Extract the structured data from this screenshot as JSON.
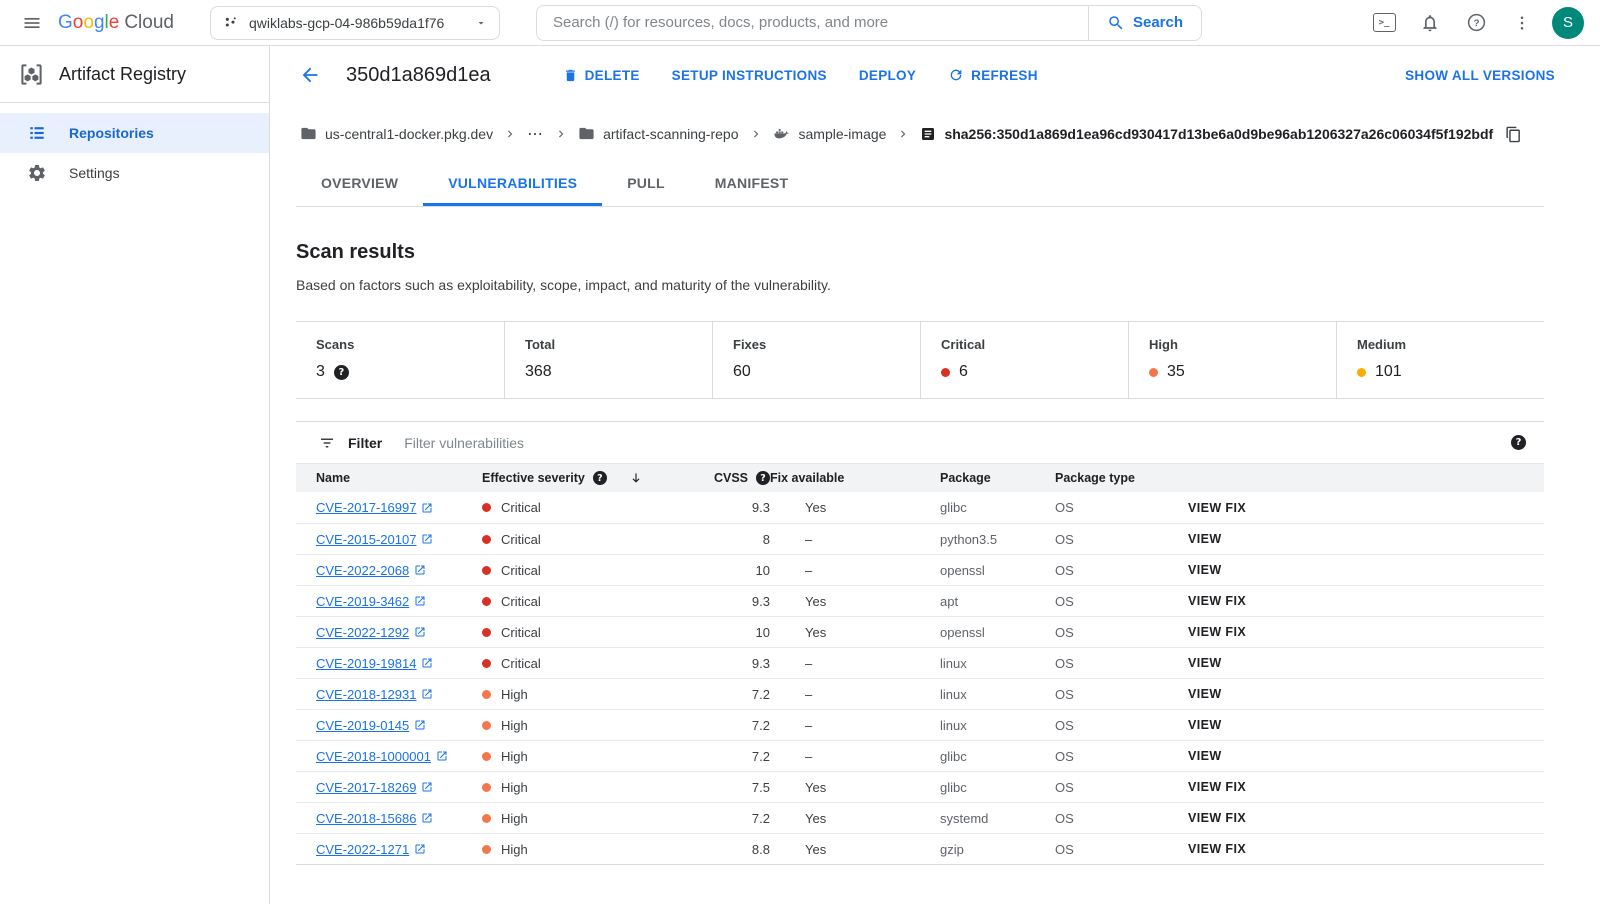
{
  "topbar": {
    "logo_google": "Google",
    "logo_cloud": "Cloud",
    "project": "qwiklabs-gcp-04-986b59da1f76",
    "search_placeholder": "Search (/) for resources, docs, products, and more",
    "search_button": "Search",
    "avatar": "S"
  },
  "sidebar": {
    "product": "Artifact Registry",
    "items": [
      {
        "label": "Repositories",
        "icon": "list",
        "active": true
      },
      {
        "label": "Settings",
        "icon": "gear",
        "active": false
      }
    ]
  },
  "header": {
    "title": "350d1a869d1ea",
    "actions": [
      {
        "name": "delete-button",
        "icon": "trash",
        "label": "DELETE"
      },
      {
        "name": "setup-instructions-button",
        "label": "SETUP INSTRUCTIONS"
      },
      {
        "name": "deploy-button",
        "label": "DEPLOY"
      },
      {
        "name": "refresh-button",
        "icon": "refresh",
        "label": "REFRESH"
      }
    ],
    "show_all_versions": "SHOW ALL VERSIONS"
  },
  "breadcrumb": {
    "items": [
      {
        "icon": "folder",
        "label": "us-central1-docker.pkg.dev"
      },
      {
        "label": "⋯",
        "ellipsis": true
      },
      {
        "icon": "folder",
        "label": "artifact-scanning-repo"
      },
      {
        "icon": "docker",
        "label": "sample-image"
      },
      {
        "icon": "document",
        "label": "sha256:350d1a869d1ea96cd930417d13be6a0d9be96ab1206327a26c06034f5f192bdf",
        "digest": true,
        "copy": true
      }
    ]
  },
  "tabs": [
    {
      "label": "OVERVIEW",
      "active": false
    },
    {
      "label": "VULNERABILITIES",
      "active": true
    },
    {
      "label": "PULL",
      "active": false
    },
    {
      "label": "MANIFEST",
      "active": false
    }
  ],
  "scan": {
    "title": "Scan results",
    "subtitle": "Based on factors such as exploitability, scope, impact, and maturity of the vulnerability.",
    "stats": [
      {
        "label": "Scans",
        "value": "3",
        "help": true
      },
      {
        "label": "Total",
        "value": "368"
      },
      {
        "label": "Fixes",
        "value": "60"
      },
      {
        "label": "Critical",
        "value": "6",
        "dot": "#d93025"
      },
      {
        "label": "High",
        "value": "35",
        "dot": "#f4764b"
      },
      {
        "label": "Medium",
        "value": "101",
        "dot": "#f9ab00"
      }
    ]
  },
  "filter": {
    "label": "Filter",
    "placeholder": "Filter vulnerabilities"
  },
  "table": {
    "columns": [
      {
        "label": "Name"
      },
      {
        "label": "Effective severity",
        "help": true,
        "sort": true
      },
      {
        "label": "CVSS",
        "help": true,
        "align": "right"
      },
      {
        "label": "Fix available"
      },
      {
        "label": "Package"
      },
      {
        "label": "Package type"
      },
      {
        "label": ""
      }
    ],
    "rows": [
      {
        "name": "CVE-2017-16997",
        "severity": "Critical",
        "cvss": "9.3",
        "fix": "Yes",
        "package": "glibc",
        "package_type": "OS",
        "action": "VIEW FIX"
      },
      {
        "name": "CVE-2015-20107",
        "severity": "Critical",
        "cvss": "8",
        "fix": "–",
        "package": "python3.5",
        "package_type": "OS",
        "action": "VIEW"
      },
      {
        "name": "CVE-2022-2068",
        "severity": "Critical",
        "cvss": "10",
        "fix": "–",
        "package": "openssl",
        "package_type": "OS",
        "action": "VIEW"
      },
      {
        "name": "CVE-2019-3462",
        "severity": "Critical",
        "cvss": "9.3",
        "fix": "Yes",
        "package": "apt",
        "package_type": "OS",
        "action": "VIEW FIX"
      },
      {
        "name": "CVE-2022-1292",
        "severity": "Critical",
        "cvss": "10",
        "fix": "Yes",
        "package": "openssl",
        "package_type": "OS",
        "action": "VIEW FIX"
      },
      {
        "name": "CVE-2019-19814",
        "severity": "Critical",
        "cvss": "9.3",
        "fix": "–",
        "package": "linux",
        "package_type": "OS",
        "action": "VIEW"
      },
      {
        "name": "CVE-2018-12931",
        "severity": "High",
        "cvss": "7.2",
        "fix": "–",
        "package": "linux",
        "package_type": "OS",
        "action": "VIEW"
      },
      {
        "name": "CVE-2019-0145",
        "severity": "High",
        "cvss": "7.2",
        "fix": "–",
        "package": "linux",
        "package_type": "OS",
        "action": "VIEW"
      },
      {
        "name": "CVE-2018-1000001",
        "severity": "High",
        "cvss": "7.2",
        "fix": "–",
        "package": "glibc",
        "package_type": "OS",
        "action": "VIEW"
      },
      {
        "name": "CVE-2017-18269",
        "severity": "High",
        "cvss": "7.5",
        "fix": "Yes",
        "package": "glibc",
        "package_type": "OS",
        "action": "VIEW FIX"
      },
      {
        "name": "CVE-2018-15686",
        "severity": "High",
        "cvss": "7.2",
        "fix": "Yes",
        "package": "systemd",
        "package_type": "OS",
        "action": "VIEW FIX"
      },
      {
        "name": "CVE-2022-1271",
        "severity": "High",
        "cvss": "8.8",
        "fix": "Yes",
        "package": "gzip",
        "package_type": "OS",
        "action": "VIEW FIX"
      }
    ]
  },
  "colors": {
    "accent": "#1a73e8",
    "avatar": "#00897b",
    "severity": {
      "Critical": "#d93025",
      "High": "#f4764b",
      "Medium": "#f9ab00"
    }
  }
}
